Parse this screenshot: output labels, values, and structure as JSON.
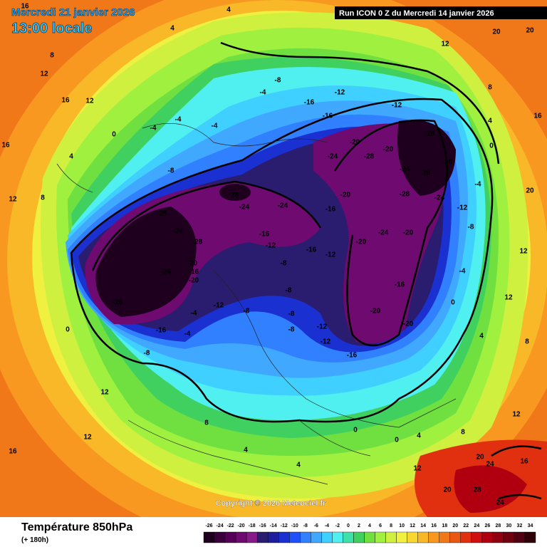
{
  "header": {
    "date": "Mercredi 21 janvier 2026",
    "time": "13:00 locale",
    "run": "Run ICON 0 Z du Mercredi 14 janvier 2026",
    "copyright": "Copyright © 2026 Meteociel.fr"
  },
  "footer": {
    "title": "Température 850hPa",
    "lead": "(+ 180h)"
  },
  "scale": {
    "values": [
      -26,
      -24,
      -22,
      -20,
      -18,
      -16,
      -14,
      -12,
      -10,
      -8,
      -6,
      -4,
      -2,
      0,
      2,
      4,
      6,
      8,
      10,
      12,
      14,
      16,
      18,
      20,
      22,
      24,
      26,
      28,
      30,
      32,
      34
    ],
    "colors": [
      "#1e001e",
      "#3a003c",
      "#560058",
      "#6e0a70",
      "#861a88",
      "#2a1c6e",
      "#1e1e9c",
      "#1a30d0",
      "#2050f8",
      "#3080ff",
      "#40a8ff",
      "#40d0ff",
      "#50f0f0",
      "#40e0a8",
      "#40d060",
      "#70e040",
      "#a0f040",
      "#d0f040",
      "#f0f040",
      "#f8d830",
      "#f8b828",
      "#f89820",
      "#f07818",
      "#e85810",
      "#e03010",
      "#d01010",
      "#b00010",
      "#900010",
      "#700010",
      "#500010",
      "#300008"
    ]
  },
  "map": {
    "labels": [
      -28,
      -24,
      -28,
      -24,
      -28,
      -20,
      -16,
      -20,
      -16,
      -8,
      -28,
      -24,
      -24,
      -16,
      -12,
      -16,
      -16,
      -12,
      -8,
      -8,
      -8,
      -8,
      -12,
      -12,
      -16,
      -20,
      -20,
      -24,
      -20,
      -16,
      -20,
      -28,
      -28,
      -28,
      -24,
      -28,
      -24,
      -20,
      -28,
      -20,
      -24,
      -20,
      -16,
      -16,
      -12,
      -12,
      -8,
      -4,
      -4,
      -4,
      0,
      -8,
      -4,
      -12,
      -8,
      -4,
      0,
      4,
      8,
      12,
      16,
      8,
      12,
      12,
      12,
      16,
      8,
      4,
      4,
      0,
      0,
      4,
      8,
      12,
      20,
      24,
      28,
      24,
      20,
      16,
      12,
      8,
      4,
      0,
      -4,
      -8,
      -12,
      -4,
      0,
      4,
      8,
      12,
      16,
      20,
      20,
      20,
      20,
      16,
      12,
      12,
      -4,
      4,
      16,
      12,
      4
    ]
  }
}
